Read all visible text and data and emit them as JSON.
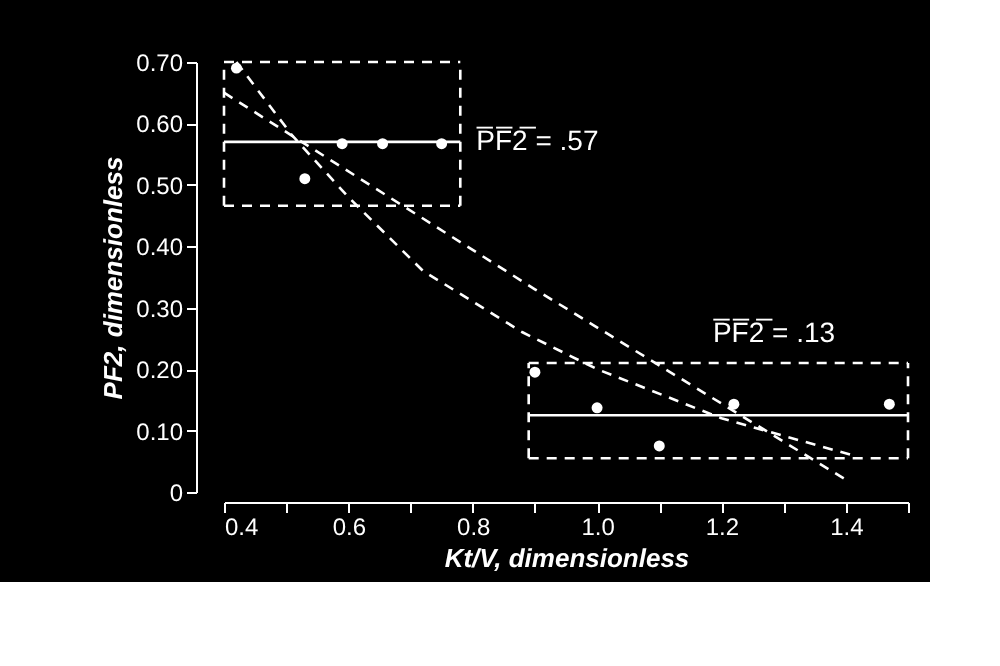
{
  "chart_data": {
    "type": "scatter",
    "xlabel": "Kt/V, dimensionless",
    "ylabel": "PF2, dimensionless",
    "xlim": [
      0.4,
      1.5
    ],
    "ylim": [
      0,
      0.7
    ],
    "xticks": [
      {
        "value": 0.4,
        "label": "0.4"
      },
      {
        "value": 0.5,
        "label": null
      },
      {
        "value": 0.6,
        "label": "0.6"
      },
      {
        "value": 0.7,
        "label": null
      },
      {
        "value": 0.8,
        "label": "0.8"
      },
      {
        "value": 0.9,
        "label": null
      },
      {
        "value": 1.0,
        "label": "1.0"
      },
      {
        "value": 1.1,
        "label": null
      },
      {
        "value": 1.2,
        "label": "1.2"
      },
      {
        "value": 1.3,
        "label": null
      },
      {
        "value": 1.4,
        "label": "1.4"
      },
      {
        "value": 1.5,
        "label": null
      }
    ],
    "yticks": [
      0,
      {
        "value": 0.1,
        "label": "0.10"
      },
      {
        "value": 0.2,
        "label": "0.20"
      },
      {
        "value": 0.3,
        "label": "0.30"
      },
      {
        "value": 0.4,
        "label": "0.40"
      },
      {
        "value": 0.5,
        "label": "0.50"
      },
      {
        "value": 0.6,
        "label": "0.60"
      },
      {
        "value": 0.7,
        "label": "0.70"
      }
    ],
    "grid": false,
    "series": [
      {
        "type": "scatter",
        "marker": "circle",
        "color": "#ffffff",
        "x": [
          0.42,
          0.53,
          0.59,
          0.655,
          0.75,
          0.9,
          1.0,
          1.1,
          1.22,
          1.47
        ],
        "values": [
          0.69,
          0.51,
          0.567,
          0.567,
          0.567,
          0.195,
          0.137,
          0.075,
          0.143,
          0.143
        ]
      },
      {
        "type": "line",
        "line_style": "dashed",
        "color": "#ffffff",
        "x": [
          0.42,
          0.51,
          0.6,
          0.72,
          0.88,
          1.0,
          1.2,
          1.41
        ],
        "values": [
          0.7,
          0.58,
          0.48,
          0.36,
          0.26,
          0.2,
          0.12,
          0.06
        ]
      },
      {
        "type": "line",
        "line_style": "dashed",
        "color": "#ffffff",
        "x": [
          0.4,
          0.9,
          1.4
        ],
        "values": [
          0.65,
          0.33,
          0.02
        ]
      },
      {
        "type": "line",
        "line_style": "dashed",
        "color": "#ffffff",
        "x": [
          0.4,
          0.78
        ],
        "values": [
          0.7,
          0.7
        ]
      },
      {
        "type": "line",
        "line_style": "dashed",
        "color": "#ffffff",
        "x": [
          0.4,
          0.78
        ],
        "values": [
          0.466,
          0.466
        ]
      },
      {
        "type": "line",
        "line_style": "dashed",
        "color": "#ffffff",
        "x": [
          0.4,
          0.4
        ],
        "values": [
          0.466,
          0.7
        ]
      },
      {
        "type": "line",
        "line_style": "dashed",
        "color": "#ffffff",
        "x": [
          0.78,
          0.78
        ],
        "values": [
          0.466,
          0.7
        ]
      },
      {
        "type": "line",
        "line_style": "solid",
        "color": "#ffffff",
        "x": [
          0.4,
          0.78
        ],
        "values": [
          0.57,
          0.57
        ]
      },
      {
        "type": "line",
        "line_style": "dashed",
        "color": "#ffffff",
        "x": [
          0.89,
          1.5
        ],
        "values": [
          0.21,
          0.21
        ]
      },
      {
        "type": "line",
        "line_style": "dashed",
        "color": "#ffffff",
        "x": [
          0.89,
          1.5
        ],
        "values": [
          0.055,
          0.055
        ]
      },
      {
        "type": "line",
        "line_style": "dashed",
        "color": "#ffffff",
        "x": [
          0.89,
          0.89
        ],
        "values": [
          0.055,
          0.21
        ]
      },
      {
        "type": "line",
        "line_style": "dashed",
        "color": "#ffffff",
        "x": [
          1.5,
          1.5
        ],
        "values": [
          0.055,
          0.21
        ]
      },
      {
        "type": "line",
        "line_style": "solid",
        "color": "#ffffff",
        "x": [
          0.89,
          1.5
        ],
        "values": [
          0.125,
          0.125
        ]
      }
    ],
    "annotations": [
      {
        "text": "P̅F̅2̅ = .57",
        "x": 0.78,
        "y": 0.57
      },
      "P̅F̅2̅ = .13"
    ]
  }
}
